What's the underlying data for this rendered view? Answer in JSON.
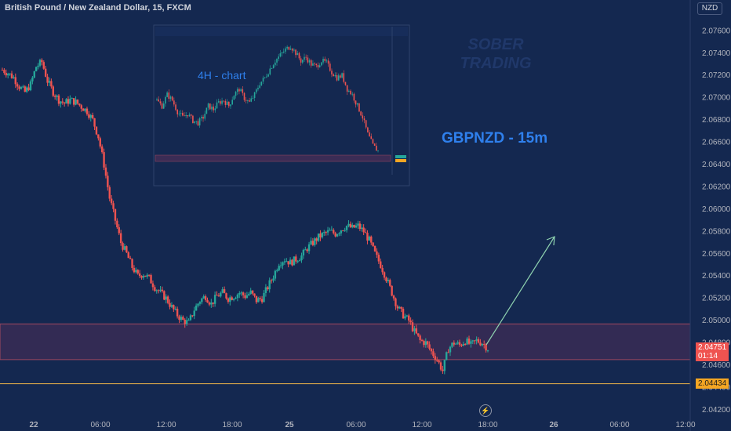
{
  "header": {
    "symbol_title": "British Pound / New Zealand Dollar, 15, FXCM",
    "currency": "NZD"
  },
  "annotations": {
    "inset_label": "4H - chart",
    "main_label": "GBPNZD - 15m",
    "logo_words": [
      "SOBER",
      "TRADING"
    ]
  },
  "price_tags": {
    "last_price": "2.04751",
    "countdown": "01:14",
    "level": "2.04434"
  },
  "icons": {
    "flash": "lightning-icon"
  },
  "colors": {
    "background": "#142850",
    "up": "#26a69a",
    "down": "#ef5350",
    "zone": "#3b2c55",
    "zone_border": "#a0485f",
    "arrow": "#8fd3b0",
    "text_blue": "#2f80ed"
  },
  "chart_data": {
    "type": "candlestick",
    "timeframe": "15",
    "y_ticks": [
      "2.07600",
      "2.07400",
      "2.07200",
      "2.07000",
      "2.06800",
      "2.06600",
      "2.06400",
      "2.06200",
      "2.06000",
      "2.05800",
      "2.05600",
      "2.05400",
      "2.05200",
      "2.05000",
      "2.04800",
      "2.04600",
      "2.04400",
      "2.04200"
    ],
    "ylim": [
      2.0415,
      2.0775
    ],
    "x_ticks": [
      "22",
      "06:00",
      "12:00",
      "18:00",
      "25",
      "06:00",
      "12:00",
      "18:00",
      "26",
      "06:00",
      "12:00"
    ],
    "price_path": [
      2.0725,
      2.0722,
      2.0718,
      2.071,
      2.0705,
      2.0712,
      2.0728,
      2.0732,
      2.0715,
      2.0705,
      2.0698,
      2.0695,
      2.0698,
      2.0696,
      2.0692,
      2.0688,
      2.068,
      2.0665,
      2.064,
      2.061,
      2.059,
      2.057,
      2.056,
      2.0548,
      2.054,
      2.0542,
      2.0538,
      2.053,
      2.0525,
      2.052,
      2.0512,
      2.0505,
      2.05,
      2.0498,
      2.051,
      2.0518,
      2.0522,
      2.0515,
      2.0522,
      2.0525,
      2.052,
      2.0522,
      2.0525,
      2.0522,
      2.0525,
      2.0518,
      2.052,
      2.053,
      2.054,
      2.0552,
      2.0555,
      2.0552,
      2.0555,
      2.0558,
      2.0565,
      2.057,
      2.0575,
      2.0578,
      2.058,
      2.0578,
      2.0582,
      2.0585,
      2.0583,
      2.0585,
      2.058,
      2.0572,
      2.056,
      2.055,
      2.0538,
      2.0525,
      2.0512,
      2.0505,
      2.05,
      2.049,
      2.0482,
      2.048,
      2.0472,
      2.0465,
      2.0455,
      2.0475,
      2.048,
      2.0478,
      2.0482,
      2.0478,
      2.0482,
      2.048,
      2.0475
    ],
    "support_zone": [
      2.0465,
      2.0497
    ],
    "support_line": 2.04434,
    "inset_chart": {
      "label": "4H - chart",
      "price_path": [
        0.5,
        0.45,
        0.55,
        0.5,
        0.4,
        0.35,
        0.38,
        0.32,
        0.3,
        0.35,
        0.45,
        0.42,
        0.48,
        0.5,
        0.45,
        0.55,
        0.6,
        0.52,
        0.48,
        0.55,
        0.65,
        0.7,
        0.78,
        0.85,
        0.9,
        0.95,
        0.98,
        0.92,
        0.85,
        0.88,
        0.82,
        0.8,
        0.85,
        0.83,
        0.75,
        0.7,
        0.72,
        0.6,
        0.55,
        0.45,
        0.35,
        0.2,
        0.1,
        0.05
      ]
    }
  }
}
